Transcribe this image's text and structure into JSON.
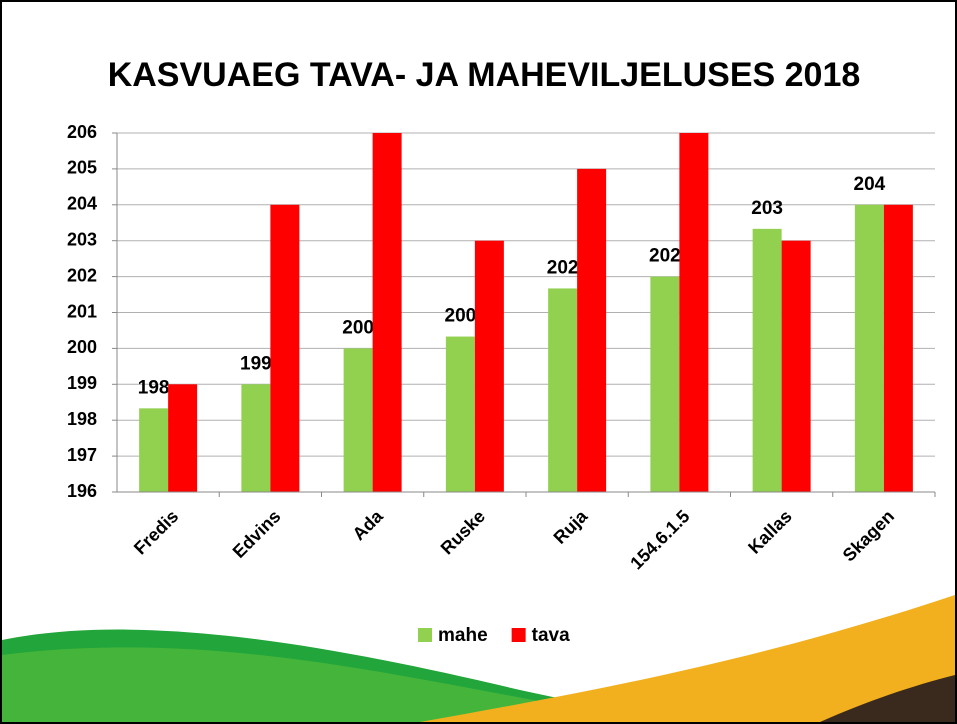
{
  "chart_data": {
    "type": "bar",
    "title": "KASVUAEG TAVA- JA MAHEVILJELUSES 2018",
    "categories": [
      "Fredis",
      "Edvins",
      "Ada",
      "Ruske",
      "Ruja",
      "154.6.1.5",
      "Kallas",
      "Skagen"
    ],
    "series": [
      {
        "name": "mahe",
        "color": "#92d050",
        "values": [
          198.33,
          199,
          200,
          200.33,
          201.67,
          202,
          203.33,
          204
        ],
        "value_labels": [
          "198",
          "199",
          "200",
          "200",
          "202",
          "202",
          "203",
          "204"
        ]
      },
      {
        "name": "tava",
        "color": "#ff0000",
        "values": [
          199,
          204,
          206,
          203,
          205,
          206,
          203,
          204
        ]
      }
    ],
    "ylim": [
      196,
      206
    ],
    "yticks": [
      196,
      197,
      198,
      199,
      200,
      201,
      202,
      203,
      204,
      205,
      206
    ],
    "grid": true,
    "legend": "bottom"
  }
}
